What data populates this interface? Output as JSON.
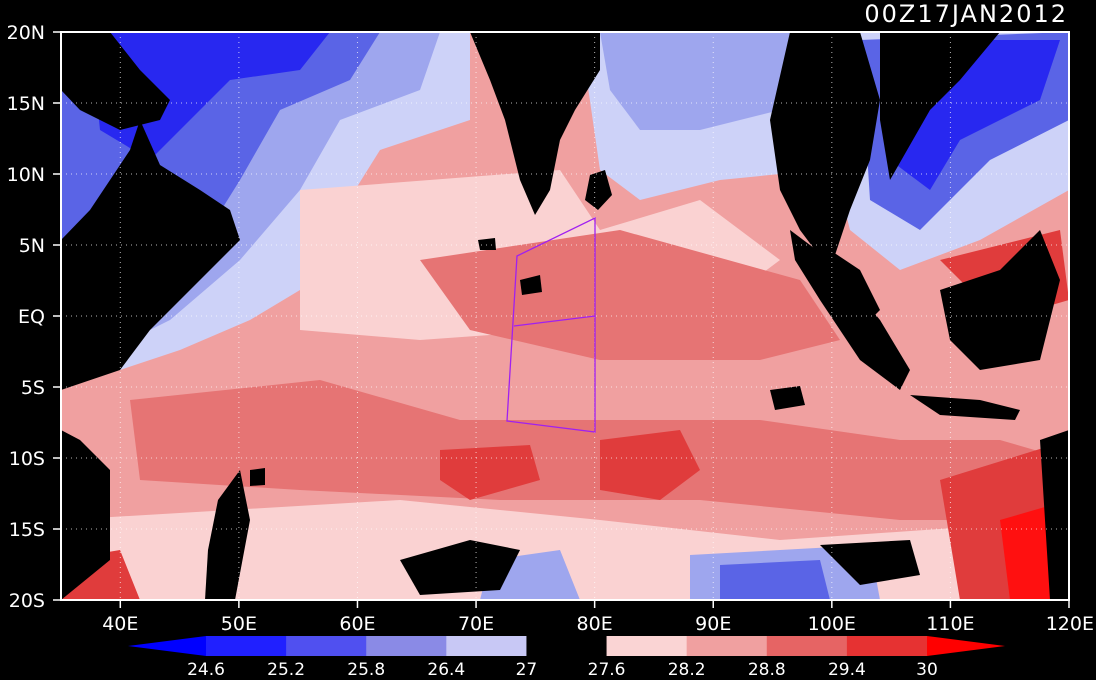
{
  "title": "00Z17JAN2012",
  "lat_ticks": [
    "20N",
    "15N",
    "10N",
    "5N",
    "EQ",
    "5S",
    "10S",
    "15S",
    "20S"
  ],
  "lon_ticks": [
    "40E",
    "50E",
    "60E",
    "70E",
    "80E",
    "90E",
    "100E",
    "110E",
    "120E"
  ],
  "colorbar": {
    "labels": [
      "24.6",
      "25.2",
      "25.8",
      "26.4",
      "27",
      "27.6",
      "28.2",
      "28.8",
      "29.4",
      "30"
    ],
    "colors": [
      "#0000ff",
      "#2020ff",
      "#5050f0",
      "#8a8ae6",
      "#c8c8f5",
      "#000000",
      "#fad4d4",
      "#f0a0a0",
      "#e66464",
      "#e63232",
      "#ff0000"
    ]
  },
  "palette": {
    "land": "#000000",
    "cool_deep": "#2828f0",
    "cool_mid": "#5a64e6",
    "cool_light": "#9ea6ee",
    "cool_pale": "#cdd2f8",
    "warm_pale": "#fad2d2",
    "warm_light": "#f2a8a8",
    "warm_mid": "#e67474",
    "warm_strong": "#e03c3c",
    "warm_max": "#ff1010",
    "box_line": "#a020f0"
  }
}
